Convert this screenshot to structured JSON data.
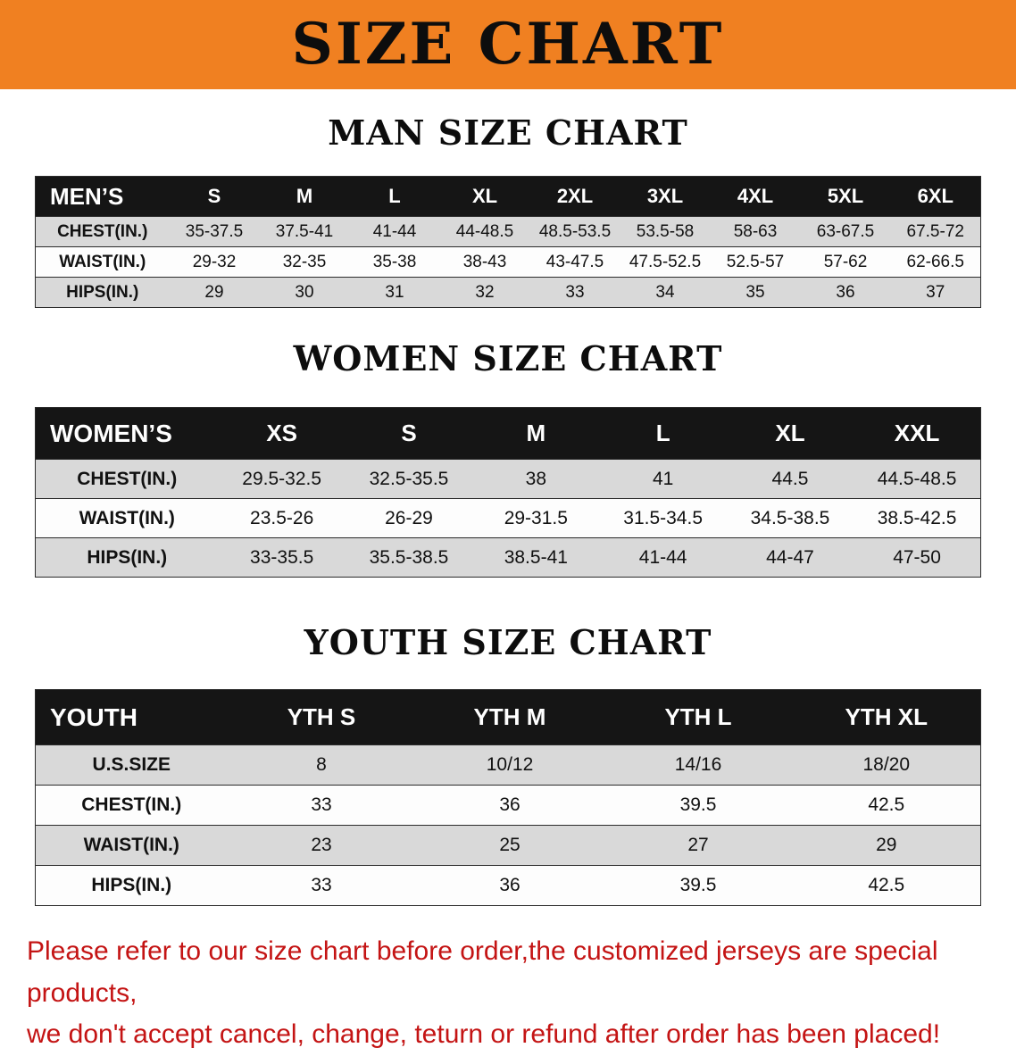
{
  "banner": {
    "title": "SIZE CHART"
  },
  "colors": {
    "banner_bg": "#F08021",
    "header_bg": "#151515",
    "stripe": "#D9D9D9",
    "footer_text": "#C41414"
  },
  "sections": [
    {
      "id": "men",
      "heading": "MAN SIZE CHART",
      "table": {
        "corner": "MEN’S",
        "columns": [
          "S",
          "M",
          "L",
          "XL",
          "2XL",
          "3XL",
          "4XL",
          "5XL",
          "6XL"
        ],
        "rows": [
          {
            "label": "CHEST(IN.)",
            "values": [
              "35-37.5",
              "37.5-41",
              "41-44",
              "44-48.5",
              "48.5-53.5",
              "53.5-58",
              "58-63",
              "63-67.5",
              "67.5-72"
            ]
          },
          {
            "label": "WAIST(IN.)",
            "values": [
              "29-32",
              "32-35",
              "35-38",
              "38-43",
              "43-47.5",
              "47.5-52.5",
              "52.5-57",
              "57-62",
              "62-66.5"
            ]
          },
          {
            "label": "HIPS(IN.)",
            "values": [
              "29",
              "30",
              "31",
              "32",
              "33",
              "34",
              "35",
              "36",
              "37"
            ]
          }
        ]
      }
    },
    {
      "id": "women",
      "heading": "WOMEN SIZE CHART",
      "table": {
        "corner": "WOMEN’S",
        "columns": [
          "XS",
          "S",
          "M",
          "L",
          "XL",
          "XXL"
        ],
        "rows": [
          {
            "label": "CHEST(IN.)",
            "values": [
              "29.5-32.5",
              "32.5-35.5",
              "38",
              "41",
              "44.5",
              "44.5-48.5"
            ]
          },
          {
            "label": "WAIST(IN.)",
            "values": [
              "23.5-26",
              "26-29",
              "29-31.5",
              "31.5-34.5",
              "34.5-38.5",
              "38.5-42.5"
            ]
          },
          {
            "label": "HIPS(IN.)",
            "values": [
              "33-35.5",
              "35.5-38.5",
              "38.5-41",
              "41-44",
              "44-47",
              "47-50"
            ]
          }
        ]
      }
    },
    {
      "id": "youth",
      "heading": "YOUTH SIZE CHART",
      "table": {
        "corner": "YOUTH",
        "columns": [
          "YTH S",
          "YTH M",
          "YTH L",
          "YTH XL"
        ],
        "rows": [
          {
            "label": "U.S.SIZE",
            "values": [
              "8",
              "10/12",
              "14/16",
              "18/20"
            ]
          },
          {
            "label": "CHEST(IN.)",
            "values": [
              "33",
              "36",
              "39.5",
              "42.5"
            ]
          },
          {
            "label": "WAIST(IN.)",
            "values": [
              "23",
              "25",
              "27",
              "29"
            ]
          },
          {
            "label": "HIPS(IN.)",
            "values": [
              "33",
              "36",
              "39.5",
              "42.5"
            ]
          }
        ]
      }
    }
  ],
  "footer": {
    "line1": "Please refer to our size chart before order,the customized jerseys are special products,",
    "line2": "we don't accept cancel, change, teturn or refund after order has been placed!"
  }
}
